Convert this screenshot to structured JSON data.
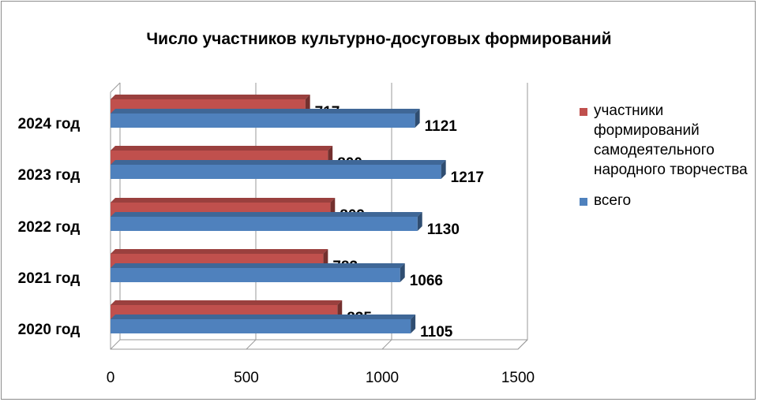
{
  "chart_data": {
    "type": "bar",
    "orientation": "horizontal",
    "title": "Число участников культурно-досуговых формирований",
    "categories": [
      "2024 год",
      "2023 год",
      "2022 год",
      "2021 год",
      "2020 год"
    ],
    "series": [
      {
        "name": "участники формирований самодеятельного народного творчества",
        "color": "#c0504d",
        "values": [
          717,
          800,
          809,
          783,
          835
        ]
      },
      {
        "name": "всего",
        "color": "#4f81bd",
        "values": [
          1121,
          1217,
          1130,
          1066,
          1105
        ]
      }
    ],
    "xlim": [
      0,
      1500
    ],
    "xticks": [
      0,
      500,
      1000,
      1500
    ],
    "grid": true,
    "legend_position": "right",
    "data_labels": true
  }
}
